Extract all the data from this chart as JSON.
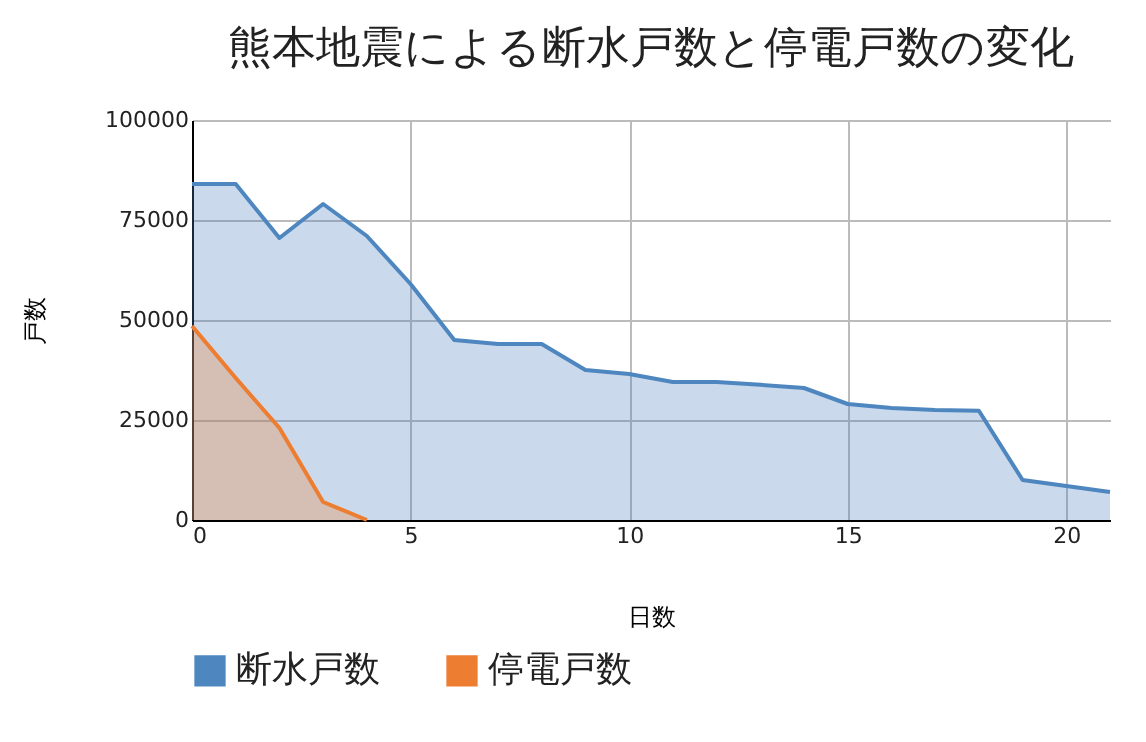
{
  "chart_data": {
    "type": "area",
    "title": "熊本地震による断水戸数と停電戸数の変化",
    "xlabel": "日数",
    "ylabel": "戸数",
    "x": [
      0,
      1,
      2,
      3,
      4,
      5,
      6,
      7,
      8,
      9,
      10,
      11,
      12,
      13,
      14,
      15,
      16,
      17,
      18,
      19,
      20,
      21
    ],
    "series": [
      {
        "name": "断水戸数",
        "color": "#4e86bf",
        "values": [
          84000,
          84000,
          70500,
          79000,
          71000,
          59000,
          45000,
          44000,
          44000,
          37500,
          36500,
          34500,
          34500,
          33800,
          33000,
          29000,
          28000,
          27500,
          27300,
          10000,
          8500,
          7000
        ]
      },
      {
        "name": "停電戸数",
        "color": "#ed7d31",
        "x": [
          0,
          1,
          2,
          3,
          4
        ],
        "values": [
          48500,
          35500,
          23000,
          4500,
          0
        ]
      }
    ],
    "xlim": [
      0,
      21
    ],
    "xticks": [
      0,
      5,
      10,
      15,
      20
    ],
    "ylim": [
      0,
      100000
    ],
    "yticks": [
      0,
      25000,
      50000,
      75000,
      100000
    ],
    "grid": true,
    "legend": "bottom"
  }
}
